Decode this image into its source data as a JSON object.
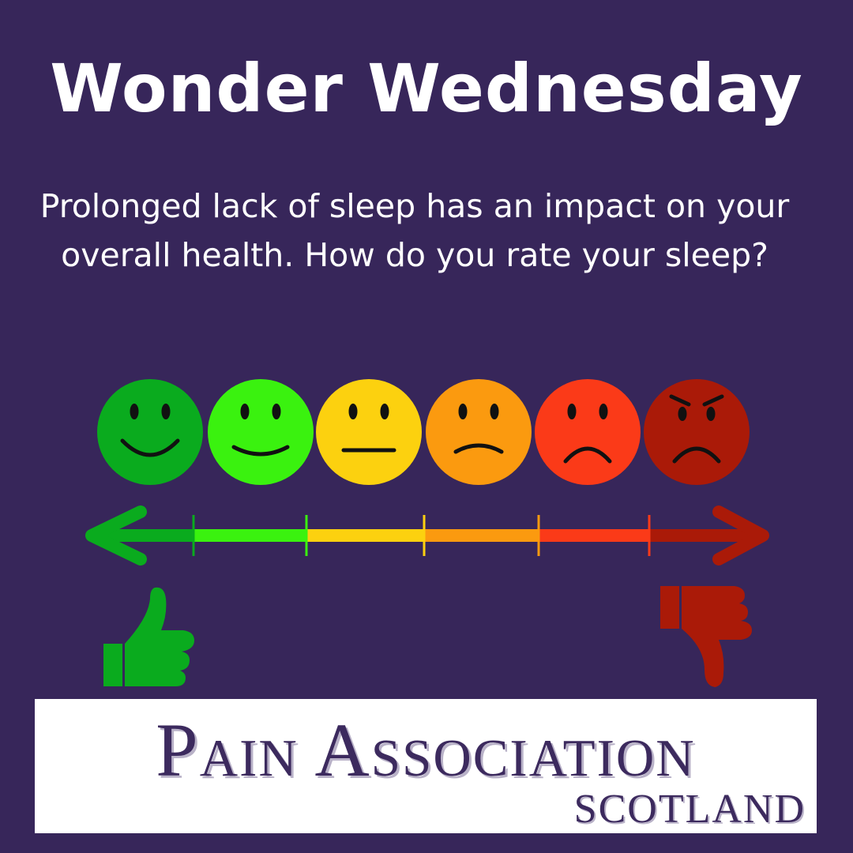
{
  "header": {
    "title": "Wonder Wednesday"
  },
  "question": {
    "text": "Prolonged lack of sleep has an impact on your overall health. How do you rate your sleep?"
  },
  "scale": {
    "faces": [
      {
        "name": "big-smile-face-icon",
        "color": "#0aab1e"
      },
      {
        "name": "smile-face-icon",
        "color": "#3af20f"
      },
      {
        "name": "neutral-face-icon",
        "color": "#fcd10f"
      },
      {
        "name": "slight-frown-face-icon",
        "color": "#fb9a0f"
      },
      {
        "name": "frown-face-icon",
        "color": "#fb3a18"
      },
      {
        "name": "angry-face-icon",
        "color": "#aa1a08"
      }
    ],
    "thumbs_up_color": "#0aab1e",
    "thumbs_down_color": "#aa1a08"
  },
  "logo": {
    "main": "Pain Association",
    "sub": "Scotland"
  }
}
